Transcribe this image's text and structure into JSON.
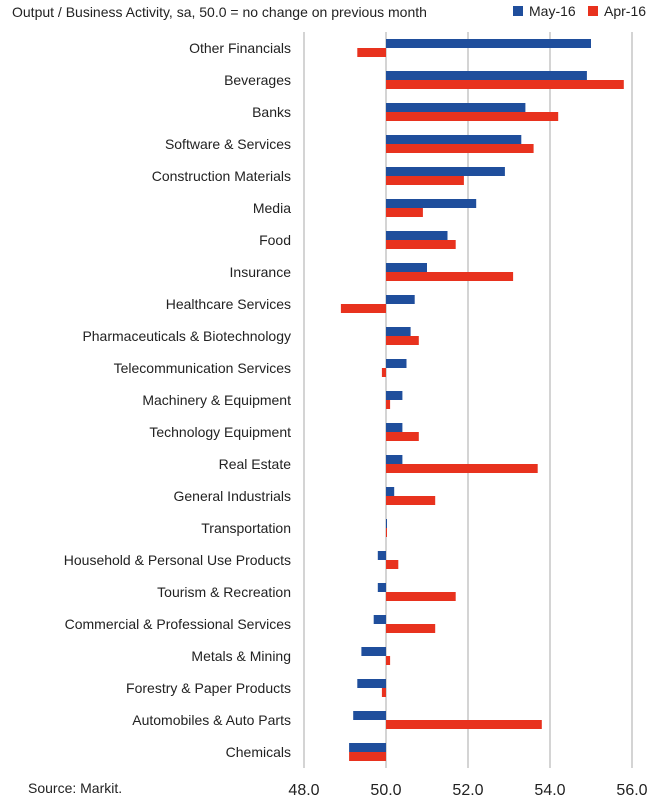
{
  "chart_data": {
    "type": "bar",
    "orientation": "horizontal",
    "title": "Output  / Business Activity, sa, 50.0 = no change on previous month",
    "baseline": 50.0,
    "xlim": [
      48.0,
      56.0
    ],
    "xticks": [
      48.0,
      50.0,
      52.0,
      54.0,
      56.0
    ],
    "xtick_labels": [
      "48.0",
      "50.0",
      "52.0",
      "54.0",
      "56.0"
    ],
    "grid": "vertical",
    "legend_position": "top-right",
    "categories": [
      "Other Financials",
      "Beverages",
      "Banks",
      "Software & Services",
      "Construction Materials",
      "Media",
      "Food",
      "Insurance",
      "Healthcare Services",
      "Pharmaceuticals & Biotechnology",
      "Telecommunication Services",
      "Machinery & Equipment",
      "Technology Equipment",
      "Real Estate",
      "General Industrials",
      "Transportation",
      "Household & Personal Use Products",
      "Tourism & Recreation",
      "Commercial & Professional Services",
      "Metals & Mining",
      "Forestry & Paper Products",
      "Automobiles & Auto Parts",
      "Chemicals"
    ],
    "series": [
      {
        "name": "May-16",
        "color": "#1f4e9c",
        "values": [
          55.0,
          54.9,
          53.4,
          53.3,
          52.9,
          52.2,
          51.5,
          51.0,
          50.7,
          50.6,
          50.5,
          50.4,
          50.4,
          50.4,
          50.2,
          50.0,
          49.8,
          49.8,
          49.7,
          49.4,
          49.3,
          49.2,
          49.1
        ]
      },
      {
        "name": "Apr-16",
        "color": "#e8321e",
        "values": [
          49.3,
          55.8,
          54.2,
          53.6,
          51.9,
          50.9,
          51.7,
          53.1,
          48.9,
          50.8,
          49.9,
          50.1,
          50.8,
          53.7,
          51.2,
          50.0,
          50.3,
          51.7,
          51.2,
          50.1,
          49.9,
          53.8,
          49.1
        ]
      }
    ]
  },
  "footer": {
    "source": "Source: Markit."
  }
}
